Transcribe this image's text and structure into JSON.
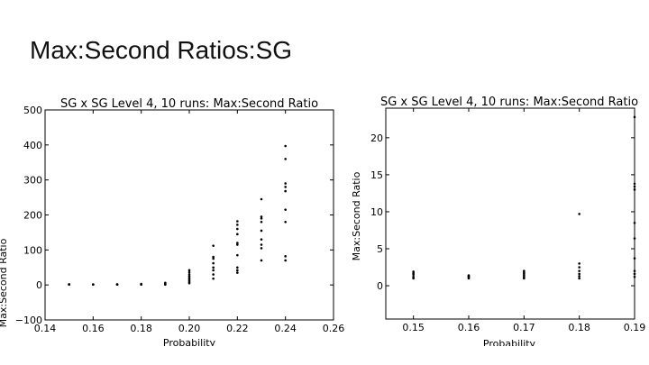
{
  "slide": {
    "title": "Max:Second Ratios:SG"
  },
  "chart_data": [
    {
      "type": "scatter",
      "title": "SG x SG Level 4, 10 runs: Max:Second Ratio",
      "xlabel": "Probability",
      "ylabel": "Max:Second Ratio",
      "xlim": [
        0.14,
        0.26
      ],
      "ylim": [
        -100,
        500
      ],
      "xticks": [
        0.14,
        0.16,
        0.18,
        0.2,
        0.22,
        0.24,
        0.26
      ],
      "xtick_labels": [
        "0.14",
        "0.16",
        "0.18",
        "0.20",
        "0.22",
        "0.24",
        "0.26"
      ],
      "yticks": [
        -100,
        0,
        100,
        200,
        300,
        400,
        500
      ],
      "ytick_labels": [
        "−100",
        "0",
        "100",
        "200",
        "300",
        "400",
        "500"
      ],
      "grid": false,
      "color": "#000000",
      "points": [
        [
          0.15,
          1
        ],
        [
          0.15,
          1.5
        ],
        [
          0.15,
          2
        ],
        [
          0.16,
          1
        ],
        [
          0.16,
          1.3
        ],
        [
          0.16,
          1.6
        ],
        [
          0.17,
          1
        ],
        [
          0.17,
          1.5
        ],
        [
          0.17,
          2
        ],
        [
          0.18,
          1
        ],
        [
          0.18,
          2
        ],
        [
          0.18,
          3
        ],
        [
          0.19,
          1
        ],
        [
          0.19,
          3
        ],
        [
          0.19,
          6
        ],
        [
          0.2,
          5
        ],
        [
          0.2,
          8
        ],
        [
          0.2,
          12
        ],
        [
          0.2,
          16
        ],
        [
          0.2,
          20
        ],
        [
          0.2,
          25
        ],
        [
          0.2,
          30
        ],
        [
          0.2,
          36
        ],
        [
          0.2,
          42
        ],
        [
          0.21,
          18
        ],
        [
          0.21,
          30
        ],
        [
          0.21,
          42
        ],
        [
          0.21,
          50
        ],
        [
          0.21,
          62
        ],
        [
          0.21,
          75
        ],
        [
          0.21,
          80
        ],
        [
          0.21,
          112
        ],
        [
          0.22,
          35
        ],
        [
          0.22,
          42
        ],
        [
          0.22,
          50
        ],
        [
          0.22,
          85
        ],
        [
          0.22,
          115
        ],
        [
          0.22,
          120
        ],
        [
          0.22,
          145
        ],
        [
          0.22,
          160
        ],
        [
          0.22,
          172
        ],
        [
          0.22,
          182
        ],
        [
          0.23,
          70
        ],
        [
          0.23,
          105
        ],
        [
          0.23,
          115
        ],
        [
          0.23,
          130
        ],
        [
          0.23,
          155
        ],
        [
          0.23,
          180
        ],
        [
          0.23,
          190
        ],
        [
          0.23,
          195
        ],
        [
          0.23,
          245
        ],
        [
          0.24,
          70
        ],
        [
          0.24,
          82
        ],
        [
          0.24,
          180
        ],
        [
          0.24,
          215
        ],
        [
          0.24,
          268
        ],
        [
          0.24,
          280
        ],
        [
          0.24,
          290
        ],
        [
          0.24,
          360
        ],
        [
          0.24,
          397
        ]
      ]
    },
    {
      "type": "scatter",
      "title": "SG x SG Level 4, 10 runs: Max:Second Ratio",
      "xlabel": "Probability",
      "ylabel": "Max:Second Ratio",
      "xlim": [
        0.145,
        0.19
      ],
      "ylim": [
        -4.5,
        24
      ],
      "xticks": [
        0.15,
        0.16,
        0.17,
        0.18,
        0.19
      ],
      "xtick_labels": [
        "0.15",
        "0.16",
        "0.17",
        "0.18",
        "0.19"
      ],
      "yticks": [
        0,
        5,
        10,
        15,
        20
      ],
      "ytick_labels": [
        "0",
        "5",
        "10",
        "15",
        "20"
      ],
      "grid": false,
      "color": "#000000",
      "points": [
        [
          0.15,
          1.0
        ],
        [
          0.15,
          1.2
        ],
        [
          0.15,
          1.5
        ],
        [
          0.15,
          1.7
        ],
        [
          0.15,
          1.9
        ],
        [
          0.16,
          1.0
        ],
        [
          0.16,
          1.1
        ],
        [
          0.16,
          1.2
        ],
        [
          0.16,
          1.3
        ],
        [
          0.16,
          1.4
        ],
        [
          0.17,
          1.0
        ],
        [
          0.17,
          1.2
        ],
        [
          0.17,
          1.4
        ],
        [
          0.17,
          1.6
        ],
        [
          0.17,
          1.8
        ],
        [
          0.17,
          2.0
        ],
        [
          0.18,
          1.0
        ],
        [
          0.18,
          1.3
        ],
        [
          0.18,
          1.6
        ],
        [
          0.18,
          2.0
        ],
        [
          0.18,
          2.5
        ],
        [
          0.18,
          3.0
        ],
        [
          0.18,
          9.7
        ],
        [
          0.19,
          1.2
        ],
        [
          0.19,
          1.6
        ],
        [
          0.19,
          2.0
        ],
        [
          0.19,
          3.7
        ],
        [
          0.19,
          6.4
        ],
        [
          0.19,
          8.5
        ],
        [
          0.19,
          13.0
        ],
        [
          0.19,
          13.4
        ],
        [
          0.19,
          13.8
        ],
        [
          0.19,
          22.8
        ]
      ]
    }
  ]
}
